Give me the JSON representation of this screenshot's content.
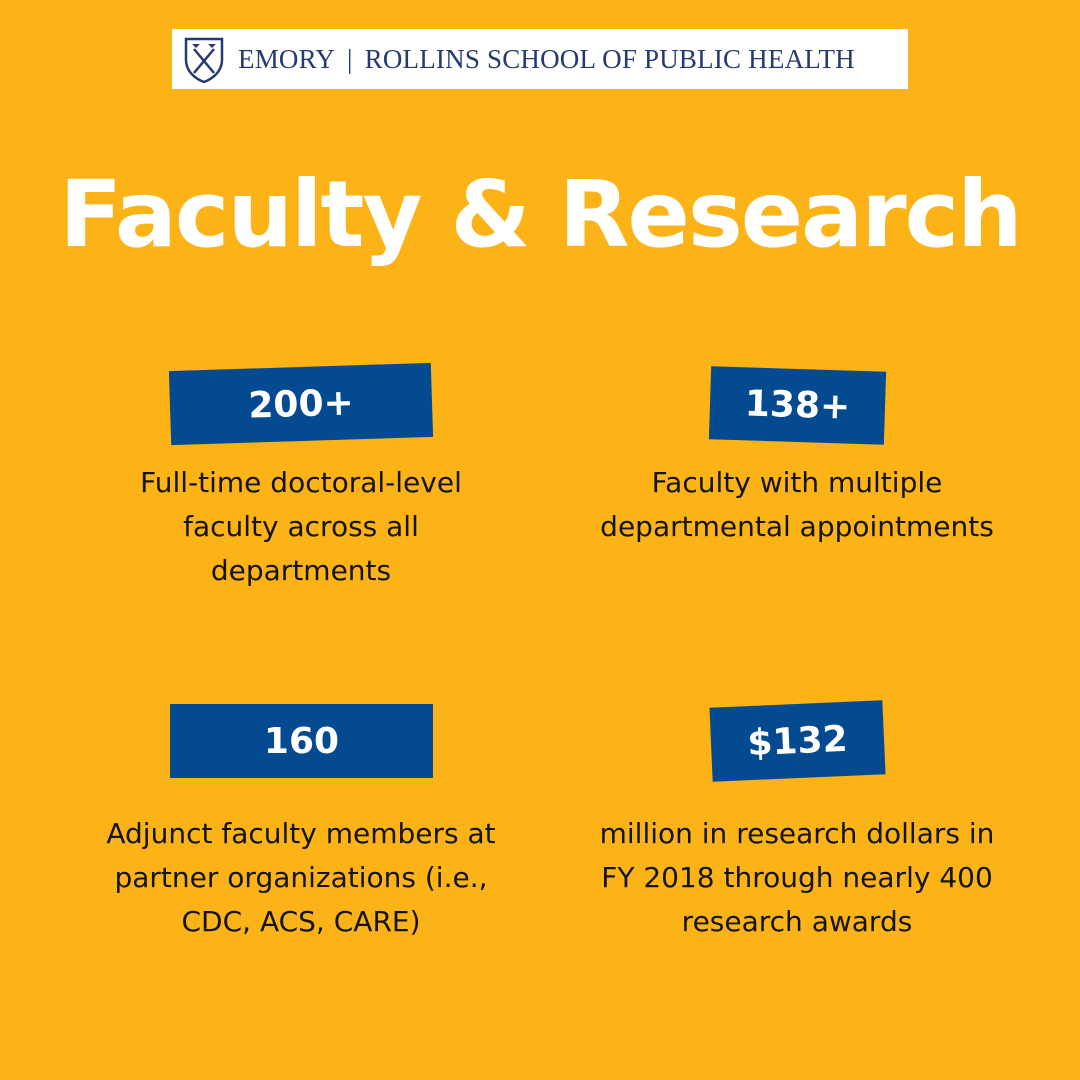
{
  "header": {
    "logo_institution": "EMORY",
    "logo_school": "ROLLINS SCHOOL OF PUBLIC HEALTH",
    "shield_icon": "emory-shield-icon"
  },
  "title": "Faculty & Research",
  "colors": {
    "background": "#fbb317",
    "badge": "#034a91",
    "title": "#ffffff",
    "text": "#141414",
    "logo_text": "#243a72"
  },
  "stats": [
    {
      "value": "200+",
      "description": "Full-time doctoral-level faculty across all departments"
    },
    {
      "value": "138+",
      "description": "Faculty with multiple departmental appointments"
    },
    {
      "value": "160",
      "description": "Adjunct faculty members at partner organizations (i.e., CDC, ACS, CARE)"
    },
    {
      "value": "$132",
      "description": "million in research dollars in FY 2018 through nearly 400 research awards"
    }
  ]
}
